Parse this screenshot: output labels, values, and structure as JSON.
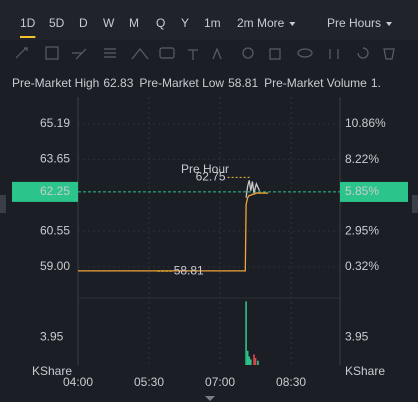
{
  "tabs": [
    "1D",
    "5D",
    "D",
    "W",
    "M",
    "Q",
    "Y",
    "1m",
    "2m More",
    "Pre Hours"
  ],
  "active_tab": "1D",
  "stats": [
    {
      "label": "Pre-Market High",
      "value": "62.83"
    },
    {
      "label": "Pre-Market Low",
      "value": "58.81"
    },
    {
      "label": "Pre-Market Volume",
      "value": "1."
    }
  ],
  "chart_data": [
    {
      "type": "line",
      "watermark": "Pre Hour",
      "x": [
        240,
        300,
        341,
        400,
        452,
        453,
        455,
        457,
        459,
        461,
        463,
        466,
        470,
        481
      ],
      "series": [
        {
          "color": "#f0a43a",
          "values": [
            58.83,
            58.83,
            58.83,
            58.83,
            58.83,
            61.7,
            62.0,
            62.1,
            62.1,
            62.15,
            62.15,
            62.2,
            62.2,
            62.2
          ]
        },
        {
          "color": "#c8c8c8",
          "values": [
            null,
            null,
            null,
            null,
            null,
            62.0,
            62.5,
            62.75,
            62.3,
            62.7,
            62.2,
            62.6,
            62.3,
            null
          ]
        }
      ],
      "xlim": [
        240,
        572
      ],
      "xticks": [
        {
          "value": 240,
          "label": "04:00"
        },
        {
          "value": 330,
          "label": "05:30"
        },
        {
          "value": 420,
          "label": "07:00"
        },
        {
          "value": 510,
          "label": "08:30"
        }
      ],
      "ylim": [
        58.0,
        66.36
      ],
      "yticks": [
        65.19,
        63.65,
        60.55,
        {
          "value": 59,
          "label": "59.00"
        }
      ],
      "y2lim": [
        -1.38,
        12.85
      ],
      "y2ticks": [
        {
          "value": 10.86,
          "label": "10.86%"
        },
        {
          "value": 8.22,
          "label": "8.22%"
        },
        {
          "value": 2.95,
          "label": "2.95%"
        },
        {
          "value": 0.32,
          "label": "0.32%"
        }
      ],
      "last_price": 62.25,
      "last_change": {
        "value": 5.85,
        "label": "5.85%"
      },
      "annotations": [
        {
          "x": 460,
          "value": 62.75
        },
        {
          "x": 341,
          "value": 58.81
        }
      ],
      "grid": true
    },
    {
      "type": "bar",
      "x": [
        453,
        455,
        457,
        459,
        463,
        465,
        468
      ],
      "values": [
        9.0,
        2.0,
        1.2,
        0.8,
        1.5,
        1.0,
        0.6
      ],
      "colors": [
        "#2bc48a",
        "#2bc48a",
        "#2bc48a",
        "#2bc48a",
        "#e0474c",
        "#e0474c",
        "#2bc48a"
      ],
      "xlim": [
        240,
        572
      ],
      "ylim": [
        0,
        9.2
      ],
      "yticks": [
        3.95
      ],
      "y2ticks": [
        3.95
      ],
      "y_label": "KShare",
      "y2_label": "KShare"
    }
  ]
}
